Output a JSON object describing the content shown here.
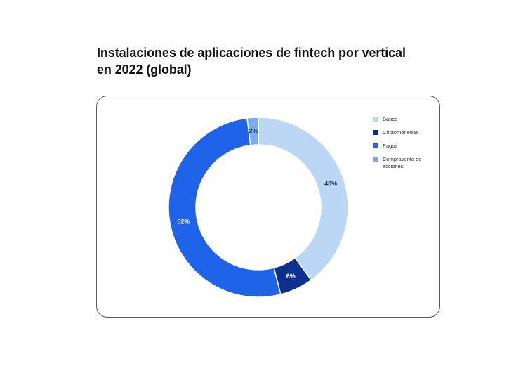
{
  "title_lines": [
    "Instalaciones de aplicaciones de fintech por vertical",
    "en 2022 (global)"
  ],
  "chart_data": {
    "type": "pie",
    "title": "Instalaciones de aplicaciones de fintech por vertical en 2022 (global)",
    "donut": true,
    "legend_position": "top-right",
    "slices": [
      {
        "label": "Banco",
        "value": 40,
        "display": "40%",
        "color": "#bcd7f5",
        "text_color": "#1a2a6b"
      },
      {
        "label": "Criptomonedas",
        "value": 6,
        "display": "6%",
        "color": "#0d2f8f",
        "text_color": "#ffffff"
      },
      {
        "label": "Pagos",
        "value": 52,
        "display": "52%",
        "color": "#1f63e8",
        "text_color": "#ffffff"
      },
      {
        "label": "Compraventa de acciones",
        "value": 2,
        "display": "2%",
        "color": "#78aef0",
        "text_color": "#1a2a6b"
      }
    ]
  }
}
